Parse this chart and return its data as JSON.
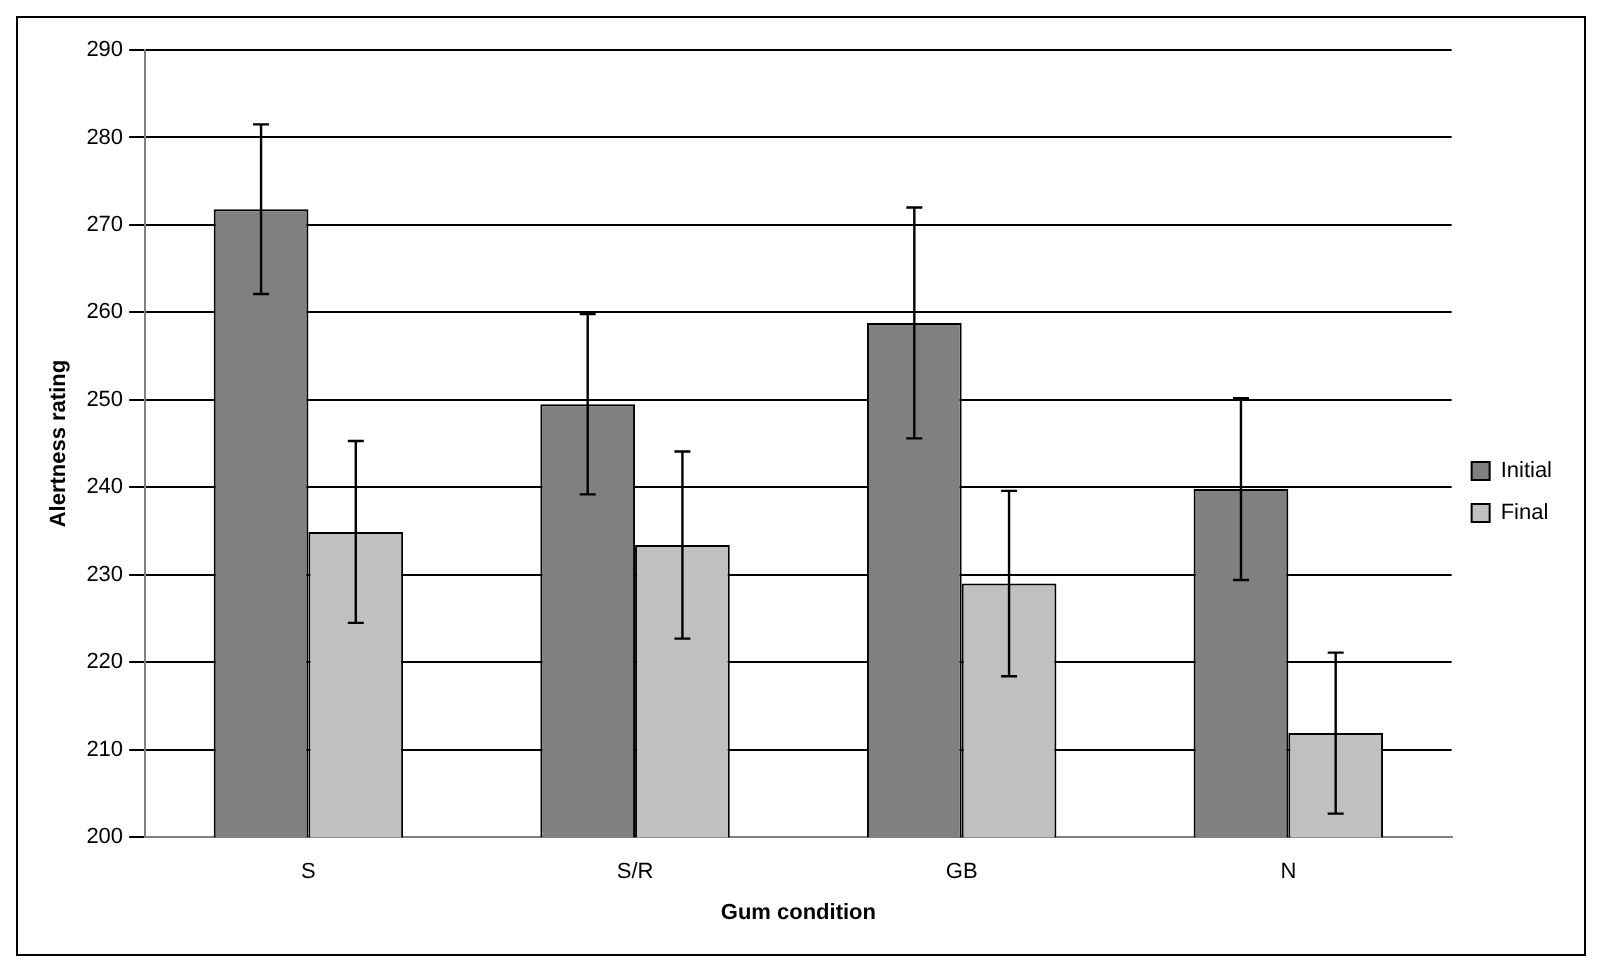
{
  "chart_data": {
    "type": "bar",
    "xlabel": "Gum condition",
    "ylabel": "Alertness rating",
    "categories": [
      "S",
      "S/R",
      "GB",
      "N"
    ],
    "series": [
      {
        "name": "Initial",
        "color": "#808080",
        "values": [
          271.8,
          249.5,
          258.8,
          239.8
        ],
        "errors": [
          9.7,
          10.3,
          13.2,
          10.4
        ]
      },
      {
        "name": "Final",
        "color": "#c0c0c0",
        "values": [
          234.9,
          233.4,
          229.0,
          211.9
        ],
        "errors": [
          10.4,
          10.7,
          10.6,
          9.2
        ]
      }
    ],
    "ylim": [
      200,
      290
    ],
    "yticks": [
      200,
      210,
      220,
      230,
      240,
      250,
      260,
      270,
      280,
      290
    ],
    "grid": "y",
    "legend": "right"
  }
}
